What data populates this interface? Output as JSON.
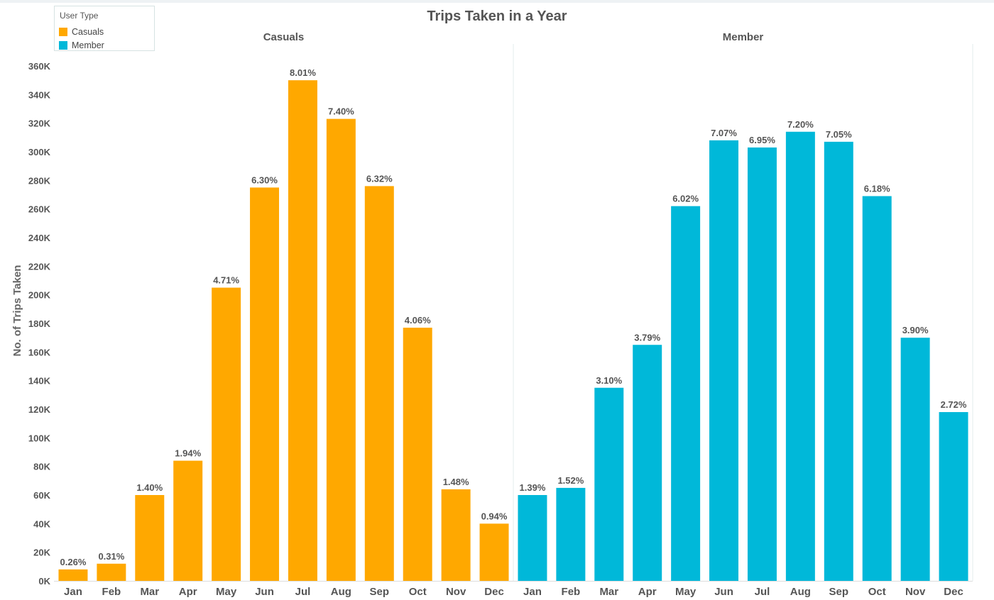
{
  "chart_data": {
    "type": "bar",
    "title": "Trips Taken in a Year",
    "ylabel": "No. of Trips Taken",
    "xlabel": "",
    "ylim": [
      0,
      360000
    ],
    "yticks": [
      0,
      20000,
      40000,
      60000,
      80000,
      100000,
      120000,
      140000,
      160000,
      180000,
      200000,
      220000,
      240000,
      260000,
      280000,
      300000,
      320000,
      340000,
      360000
    ],
    "ytick_labels": [
      "0K",
      "20K",
      "40K",
      "60K",
      "80K",
      "100K",
      "120K",
      "140K",
      "160K",
      "180K",
      "200K",
      "220K",
      "240K",
      "260K",
      "280K",
      "300K",
      "320K",
      "340K",
      "360K"
    ],
    "grid": false,
    "legend": {
      "title": "User Type",
      "placement": "top-left",
      "items": [
        {
          "label": "Casuals",
          "color": "#ffa800"
        },
        {
          "label": "Member",
          "color": "#00b8d9"
        }
      ]
    },
    "categories": [
      "Jan",
      "Feb",
      "Mar",
      "Apr",
      "May",
      "Jun",
      "Jul",
      "Aug",
      "Sep",
      "Oct",
      "Nov",
      "Dec"
    ],
    "panels": [
      {
        "name": "Casuals",
        "color": "#ffa800",
        "values": [
          8000,
          12000,
          60000,
          84000,
          205000,
          275000,
          350000,
          323000,
          276000,
          177000,
          64000,
          40000
        ],
        "labels": [
          "0.26%",
          "0.31%",
          "1.40%",
          "1.94%",
          "4.71%",
          "6.30%",
          "8.01%",
          "7.40%",
          "6.32%",
          "4.06%",
          "1.48%",
          "0.94%"
        ]
      },
      {
        "name": "Member",
        "color": "#00b8d9",
        "values": [
          60000,
          65000,
          135000,
          165000,
          262000,
          308000,
          303000,
          314000,
          307000,
          269000,
          170000,
          118000
        ],
        "labels": [
          "1.39%",
          "1.52%",
          "3.10%",
          "3.79%",
          "6.02%",
          "7.07%",
          "6.95%",
          "7.20%",
          "7.05%",
          "6.18%",
          "3.90%",
          "2.72%"
        ]
      }
    ]
  }
}
